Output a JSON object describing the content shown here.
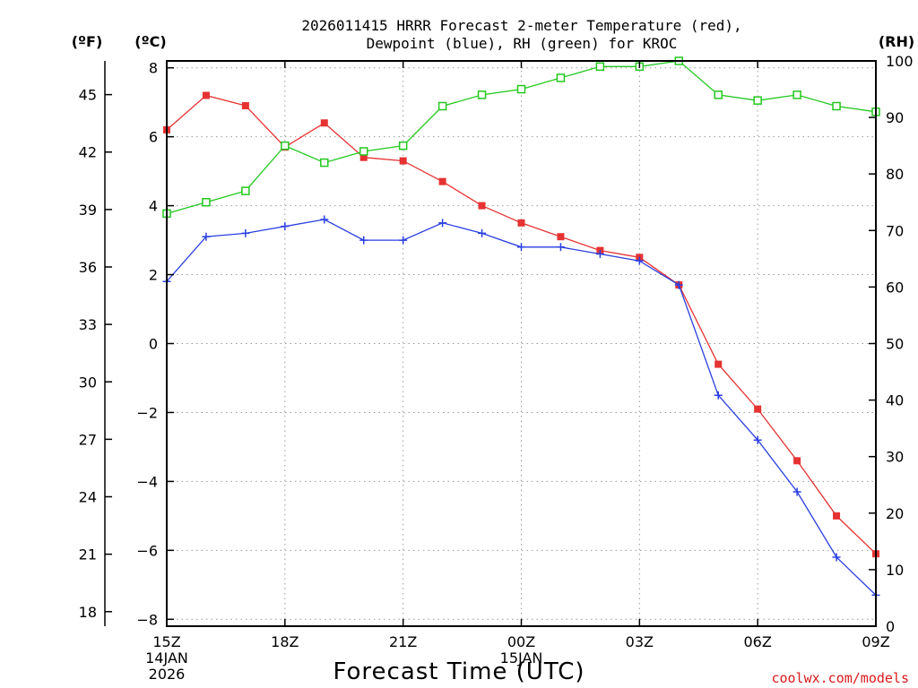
{
  "chart_data": {
    "type": "line",
    "title_line1": "2026011415 HRRR Forecast 2-meter Temperature (red),",
    "title_line2": "Dewpoint (blue), RH (green) for KROC",
    "xlabel": "Forecast Time (UTC)",
    "credit": "coolwx.com/models",
    "unit_f": "(ºF)",
    "unit_c": "(ºC)",
    "unit_rh": "(RH)",
    "x_hours": [
      15,
      16,
      17,
      18,
      19,
      20,
      21,
      22,
      23,
      24,
      25,
      26,
      27,
      28,
      29,
      30,
      31,
      32,
      33
    ],
    "x_ticks": [
      {
        "hour": 15,
        "label": "15Z",
        "sub1": "14JAN",
        "sub2": "2026"
      },
      {
        "hour": 18,
        "label": "18Z",
        "sub1": "",
        "sub2": ""
      },
      {
        "hour": 21,
        "label": "21Z",
        "sub1": "",
        "sub2": ""
      },
      {
        "hour": 24,
        "label": "00Z",
        "sub1": "15JAN",
        "sub2": ""
      },
      {
        "hour": 27,
        "label": "03Z",
        "sub1": "",
        "sub2": ""
      },
      {
        "hour": 30,
        "label": "06Z",
        "sub1": "",
        "sub2": ""
      },
      {
        "hour": 33,
        "label": "09Z",
        "sub1": "",
        "sub2": ""
      }
    ],
    "celsius_ticks": [
      8,
      6,
      4,
      2,
      0,
      -2,
      -4,
      -6,
      -8
    ],
    "celsius_tick_labels": [
      "8",
      "6",
      "4",
      "2",
      "0",
      "−2",
      "−4",
      "−6",
      "−8"
    ],
    "fahrenheit_ticks": [
      45,
      42,
      39,
      36,
      33,
      30,
      27,
      24,
      21,
      18
    ],
    "fahrenheit_tick_labels": [
      "45",
      "42",
      "39",
      "36",
      "33",
      "30",
      "27",
      "24",
      "21",
      "18"
    ],
    "rh_ticks": [
      100,
      90,
      80,
      70,
      60,
      50,
      40,
      30,
      20,
      10,
      0
    ],
    "rh_tick_labels": [
      "100",
      "90",
      "80",
      "70",
      "60",
      "50",
      "40",
      "30",
      "20",
      "10",
      "0"
    ],
    "ylim_c": [
      -8.2,
      8.2
    ],
    "ylim_rh": [
      0,
      100
    ],
    "series": [
      {
        "name": "Temperature",
        "axis": "c",
        "color": "#e63232",
        "marker": "filled-square",
        "values": [
          6.2,
          7.2,
          6.9,
          5.7,
          6.4,
          5.4,
          5.3,
          4.7,
          4.0,
          3.5,
          3.1,
          2.7,
          2.5,
          1.7,
          -0.6,
          -1.9,
          -3.4,
          -5.0,
          -6.1
        ]
      },
      {
        "name": "Dewpoint",
        "axis": "c",
        "color": "#2a3fe0",
        "marker": "plus",
        "values": [
          1.8,
          3.1,
          3.2,
          3.4,
          3.6,
          3.0,
          3.0,
          3.5,
          3.2,
          2.8,
          2.8,
          2.6,
          2.4,
          1.7,
          -1.5,
          -2.8,
          -4.3,
          -6.2,
          -7.3
        ]
      },
      {
        "name": "RH",
        "axis": "rh",
        "color": "#22c81e",
        "marker": "open-square",
        "values": [
          73,
          75,
          77,
          85,
          82,
          84,
          85,
          92,
          94,
          95,
          97,
          99,
          99,
          100,
          94,
          93,
          94,
          92,
          91
        ]
      }
    ]
  }
}
